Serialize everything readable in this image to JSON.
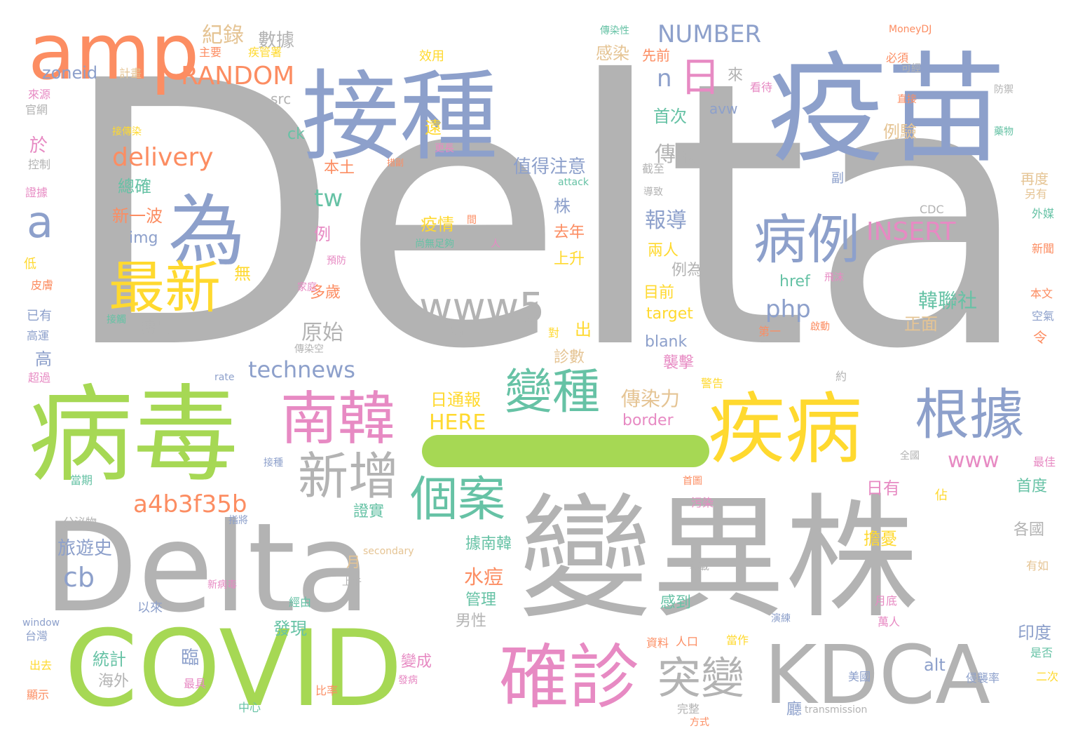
{
  "colors": {
    "gray": "#b3b3b3",
    "blue": "#8da0cb",
    "green": "#a6d854",
    "orange": "#fc8d62",
    "pink": "#e78ac3",
    "yellow": "#ffd92f",
    "tan": "#e5c494",
    "teal": "#66c2a5"
  },
  "words": [
    {
      "text": "Delta",
      "color": "gray"
    },
    {
      "text": "疫苗",
      "color": "blue"
    },
    {
      "text": "接種",
      "color": "blue"
    },
    {
      "text": "amp",
      "color": "orange"
    },
    {
      "text": "變異株",
      "color": "gray"
    },
    {
      "text": "Delta",
      "color": "gray"
    },
    {
      "text": "病毒",
      "color": "green"
    },
    {
      "text": "COVID",
      "color": "green"
    },
    {
      "text": "疾病",
      "color": "yellow"
    },
    {
      "text": "KDCA",
      "color": "gray"
    },
    {
      "text": "為",
      "color": "blue"
    },
    {
      "text": "最新",
      "color": "yellow"
    },
    {
      "text": "南韓",
      "color": "pink"
    },
    {
      "text": "確診",
      "color": "pink"
    },
    {
      "text": "病例",
      "color": "blue"
    },
    {
      "text": "根據",
      "color": "blue"
    },
    {
      "text": "變種",
      "color": "teal"
    },
    {
      "text": "新增",
      "color": "gray"
    },
    {
      "text": "個案",
      "color": "teal"
    },
    {
      "text": "突變",
      "color": "gray"
    },
    {
      "text": "www5",
      "color": "gray"
    },
    {
      "text": "日",
      "color": "pink"
    },
    {
      "text": "a",
      "color": "blue"
    },
    {
      "text": "RANDOM",
      "color": "orange"
    },
    {
      "text": "NUMBER",
      "color": "blue"
    },
    {
      "text": "delivery",
      "color": "orange"
    },
    {
      "text": "a4b3f35b",
      "color": "orange"
    },
    {
      "text": "INSERT",
      "color": "pink"
    },
    {
      "text": "technews",
      "color": "blue"
    },
    {
      "text": "HERE",
      "color": "yellow"
    },
    {
      "text": "www",
      "color": "pink"
    },
    {
      "text": "php",
      "color": "blue"
    },
    {
      "text": "cb",
      "color": "blue"
    },
    {
      "text": "tw",
      "color": "teal"
    },
    {
      "text": "n",
      "color": "blue"
    },
    {
      "text": "zoneid",
      "color": "blue"
    },
    {
      "text": "紀錄",
      "color": "tan"
    },
    {
      "text": "數據",
      "color": "gray"
    },
    {
      "text": "傳染",
      "color": "gray"
    },
    {
      "text": "傳染力",
      "color": "tan"
    },
    {
      "text": "原始",
      "color": "gray"
    },
    {
      "text": "報導",
      "color": "blue"
    },
    {
      "text": "值得注意",
      "color": "blue"
    },
    {
      "text": "韓聯社",
      "color": "teal"
    },
    {
      "text": "旅遊史",
      "color": "blue"
    },
    {
      "text": "水痘",
      "color": "orange"
    },
    {
      "text": "日通報",
      "color": "yellow"
    },
    {
      "text": "感染",
      "color": "tan"
    },
    {
      "text": "例驗",
      "color": "tan"
    },
    {
      "text": "首次",
      "color": "teal"
    },
    {
      "text": "border",
      "color": "pink"
    },
    {
      "text": "target",
      "color": "yellow"
    },
    {
      "text": "blank",
      "color": "blue"
    },
    {
      "text": "href",
      "color": "teal"
    },
    {
      "text": "img",
      "color": "blue"
    },
    {
      "text": "ck",
      "color": "teal"
    },
    {
      "text": "src",
      "color": "gray"
    },
    {
      "text": "avw",
      "color": "blue"
    },
    {
      "text": "alt",
      "color": "blue"
    },
    {
      "text": "於",
      "color": "pink"
    },
    {
      "text": "例",
      "color": "pink"
    },
    {
      "text": "株",
      "color": "blue"
    },
    {
      "text": "高",
      "color": "blue"
    },
    {
      "text": "出",
      "color": "yellow"
    },
    {
      "text": "無",
      "color": "yellow"
    },
    {
      "text": "臨",
      "color": "blue"
    },
    {
      "text": "遠",
      "color": "yellow"
    },
    {
      "text": "來",
      "color": "gray"
    },
    {
      "text": "本土",
      "color": "orange"
    },
    {
      "text": "總確",
      "color": "teal"
    },
    {
      "text": "新一波",
      "color": "orange"
    },
    {
      "text": "疫情",
      "color": "yellow"
    },
    {
      "text": "去年",
      "color": "orange"
    },
    {
      "text": "上升",
      "color": "yellow"
    },
    {
      "text": "兩人",
      "color": "yellow"
    },
    {
      "text": "例為",
      "color": "gray"
    },
    {
      "text": "目前",
      "color": "yellow"
    },
    {
      "text": "多歲",
      "color": "orange"
    },
    {
      "text": "傳出",
      "color": "gray"
    },
    {
      "text": "襲擊",
      "color": "pink"
    },
    {
      "text": "診數",
      "color": "tan"
    },
    {
      "text": "正面",
      "color": "tan"
    },
    {
      "text": "日有",
      "color": "pink"
    },
    {
      "text": "首度",
      "color": "teal"
    },
    {
      "text": "各國",
      "color": "gray"
    },
    {
      "text": "擔憂",
      "color": "yellow"
    },
    {
      "text": "證實",
      "color": "teal"
    },
    {
      "text": "據南韓",
      "color": "teal"
    },
    {
      "text": "管理",
      "color": "teal"
    },
    {
      "text": "男性",
      "color": "gray"
    },
    {
      "text": "發現",
      "color": "teal"
    },
    {
      "text": "變成",
      "color": "pink"
    },
    {
      "text": "統計",
      "color": "teal"
    },
    {
      "text": "海外",
      "color": "gray"
    },
    {
      "text": "感到",
      "color": "teal"
    },
    {
      "text": "印度",
      "color": "blue"
    },
    {
      "text": "再度",
      "color": "tan"
    },
    {
      "text": "月",
      "color": "tan"
    },
    {
      "text": "廳",
      "color": "blue"
    },
    {
      "text": "令",
      "color": "orange"
    },
    {
      "text": "傳染性",
      "color": "teal"
    },
    {
      "text": "MoneyDJ",
      "color": "orange"
    },
    {
      "text": "主要",
      "color": "orange"
    },
    {
      "text": "疾管署",
      "color": "yellow"
    },
    {
      "text": "計畫",
      "color": "tan"
    },
    {
      "text": "效用",
      "color": "yellow"
    },
    {
      "text": "先前",
      "color": "orange"
    },
    {
      "text": "必須",
      "color": "orange"
    },
    {
      "text": "可經",
      "color": "gray"
    },
    {
      "text": "看待",
      "color": "pink"
    },
    {
      "text": "直接",
      "color": "orange"
    },
    {
      "text": "防禦",
      "color": "gray"
    },
    {
      "text": "來源",
      "color": "pink"
    },
    {
      "text": "官網",
      "color": "gray"
    },
    {
      "text": "接傳染",
      "color": "yellow"
    },
    {
      "text": "更長",
      "color": "pink"
    },
    {
      "text": "控制",
      "color": "gray"
    },
    {
      "text": "措副",
      "color": "orange"
    },
    {
      "text": "截至",
      "color": "gray"
    },
    {
      "text": "藥物",
      "color": "teal"
    },
    {
      "text": "證據",
      "color": "pink"
    },
    {
      "text": "attack",
      "color": "teal"
    },
    {
      "text": "導致",
      "color": "gray"
    },
    {
      "text": "副",
      "color": "blue"
    },
    {
      "text": "另有",
      "color": "tan"
    },
    {
      "text": "外媒",
      "color": "teal"
    },
    {
      "text": "CDC",
      "color": "gray"
    },
    {
      "text": "低",
      "color": "yellow"
    },
    {
      "text": "間",
      "color": "orange"
    },
    {
      "text": "人",
      "color": "pink"
    },
    {
      "text": "尚無足夠",
      "color": "teal"
    },
    {
      "text": "預防",
      "color": "pink"
    },
    {
      "text": "新聞",
      "color": "orange"
    },
    {
      "text": "皮膚",
      "color": "orange"
    },
    {
      "text": "家庭",
      "color": "pink"
    },
    {
      "text": "飛沫",
      "color": "pink"
    },
    {
      "text": "本文",
      "color": "orange"
    },
    {
      "text": "已有",
      "color": "blue"
    },
    {
      "text": "接觸",
      "color": "teal"
    },
    {
      "text": "表示",
      "color": "gray"
    },
    {
      "text": "對",
      "color": "yellow"
    },
    {
      "text": "啟動",
      "color": "orange"
    },
    {
      "text": "第一",
      "color": "orange"
    },
    {
      "text": "空氣",
      "color": "blue"
    },
    {
      "text": "高運",
      "color": "blue"
    },
    {
      "text": "傳染空",
      "color": "gray"
    },
    {
      "text": "超過",
      "color": "pink"
    },
    {
      "text": "rate",
      "color": "blue"
    },
    {
      "text": "警告",
      "color": "yellow"
    },
    {
      "text": "約",
      "color": "gray"
    },
    {
      "text": "全國",
      "color": "gray"
    },
    {
      "text": "接種",
      "color": "blue"
    },
    {
      "text": "最佳",
      "color": "pink"
    },
    {
      "text": "當期",
      "color": "teal"
    },
    {
      "text": "首圖",
      "color": "orange"
    },
    {
      "text": "分泌物",
      "color": "gray"
    },
    {
      "text": "指將",
      "color": "blue"
    },
    {
      "text": "污染",
      "color": "pink"
    },
    {
      "text": "佔",
      "color": "yellow"
    },
    {
      "text": "secondary",
      "color": "tan"
    },
    {
      "text": "有如",
      "color": "tan"
    },
    {
      "text": "轉載",
      "color": "gray"
    },
    {
      "text": "新病毒",
      "color": "pink"
    },
    {
      "text": "上午",
      "color": "gray"
    },
    {
      "text": "以來",
      "color": "blue"
    },
    {
      "text": "經由",
      "color": "teal"
    },
    {
      "text": "月底",
      "color": "pink"
    },
    {
      "text": "window",
      "color": "blue"
    },
    {
      "text": "演練",
      "color": "blue"
    },
    {
      "text": "萬人",
      "color": "pink"
    },
    {
      "text": "台灣",
      "color": "blue"
    },
    {
      "text": "資料",
      "color": "orange"
    },
    {
      "text": "人口",
      "color": "orange"
    },
    {
      "text": "當作",
      "color": "yellow"
    },
    {
      "text": "是否",
      "color": "teal"
    },
    {
      "text": "出去",
      "color": "yellow"
    },
    {
      "text": "發病",
      "color": "pink"
    },
    {
      "text": "美國",
      "color": "blue"
    },
    {
      "text": "侵襲率",
      "color": "blue"
    },
    {
      "text": "二次",
      "color": "yellow"
    },
    {
      "text": "顯示",
      "color": "orange"
    },
    {
      "text": "最具",
      "color": "pink"
    },
    {
      "text": "比率",
      "color": "orange"
    },
    {
      "text": "中心",
      "color": "teal"
    },
    {
      "text": "完整",
      "color": "gray"
    },
    {
      "text": "transmission",
      "color": "gray"
    },
    {
      "text": "方式",
      "color": "orange"
    }
  ]
}
